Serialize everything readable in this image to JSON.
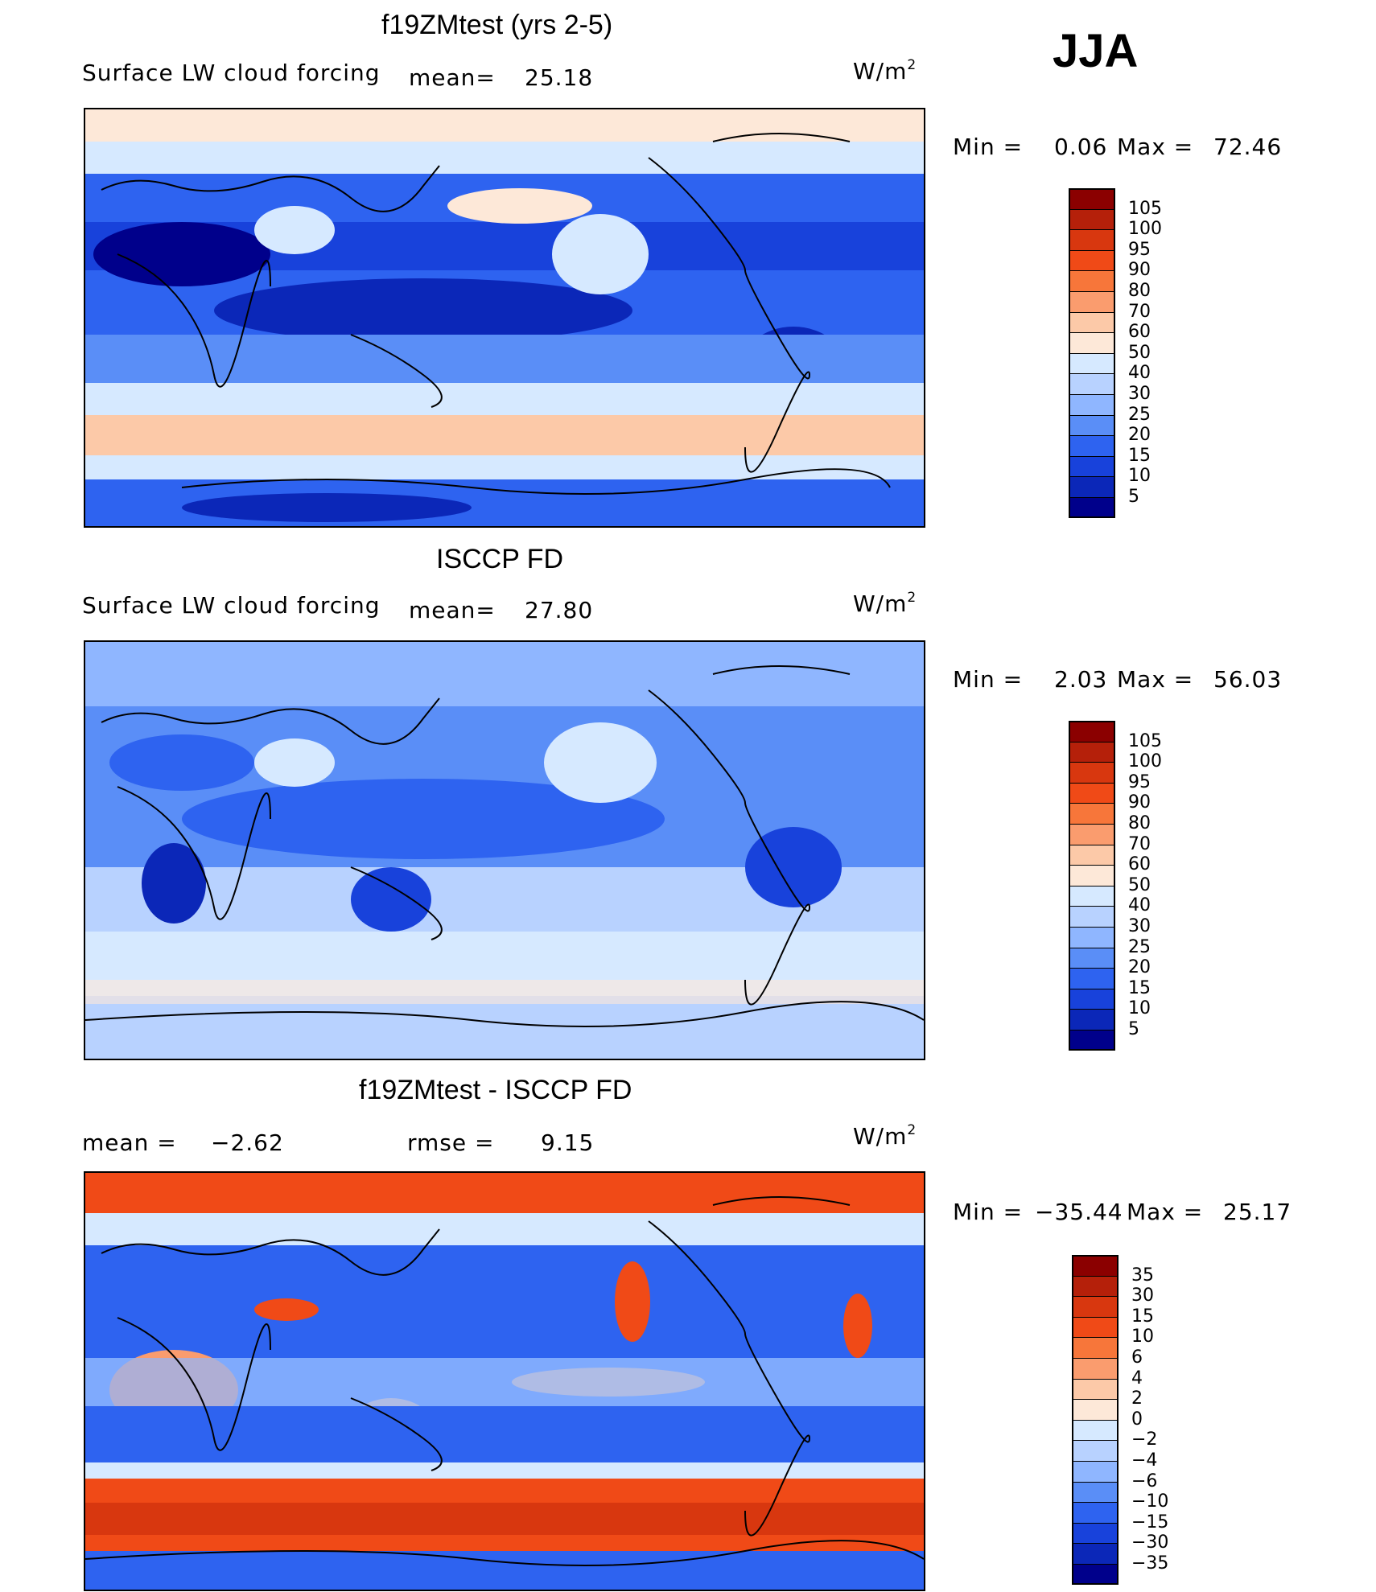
{
  "season": "JJA",
  "units_label": "W/m",
  "units_sup": "2",
  "panels": [
    {
      "title": "f19ZMtest (yrs 2-5)",
      "field": "Surface LW cloud forcing",
      "mean_label": "mean=",
      "mean_value": "25.18",
      "min_label": "Min =",
      "min_value": "0.06",
      "max_label": "Max =",
      "max_value": "72.46",
      "colorbar": {
        "levels": [
          "105",
          "100",
          "95",
          "90",
          "80",
          "70",
          "60",
          "50",
          "40",
          "30",
          "25",
          "20",
          "15",
          "10",
          "5"
        ],
        "colors": [
          "#8b0000",
          "#b5200a",
          "#d8370f",
          "#f04a17",
          "#f7763a",
          "#fa9c6e",
          "#fcc9a8",
          "#fde8d8",
          "#d6e9ff",
          "#b8d2ff",
          "#8fb6ff",
          "#5a8ef7",
          "#2e63f0",
          "#1842db",
          "#0b27b8",
          "#00008b"
        ]
      }
    },
    {
      "title": "ISCCP FD",
      "field": "Surface LW cloud forcing",
      "mean_label": "mean=",
      "mean_value": "27.80",
      "min_label": "Min =",
      "min_value": "2.03",
      "max_label": "Max =",
      "max_value": "56.03",
      "colorbar": {
        "levels": [
          "105",
          "100",
          "95",
          "90",
          "80",
          "70",
          "60",
          "50",
          "40",
          "30",
          "25",
          "20",
          "15",
          "10",
          "5"
        ],
        "colors": [
          "#8b0000",
          "#b5200a",
          "#d8370f",
          "#f04a17",
          "#f7763a",
          "#fa9c6e",
          "#fcc9a8",
          "#fde8d8",
          "#d6e9ff",
          "#b8d2ff",
          "#8fb6ff",
          "#5a8ef7",
          "#2e63f0",
          "#1842db",
          "#0b27b8",
          "#00008b"
        ]
      }
    },
    {
      "title": "f19ZMtest - ISCCP FD",
      "mean_label": "mean =",
      "mean_value": "−2.62",
      "rmse_label": "rmse =",
      "rmse_value": "9.15",
      "min_label": "Min =",
      "min_value": "−35.44",
      "max_label": "Max =",
      "max_value": "25.17",
      "colorbar": {
        "levels": [
          "35",
          "30",
          "15",
          "10",
          "6",
          "4",
          "2",
          "0",
          "−2",
          "−4",
          "−6",
          "−10",
          "−15",
          "−30",
          "−35"
        ],
        "colors": [
          "#8b0000",
          "#b5200a",
          "#d8370f",
          "#f04a17",
          "#f7763a",
          "#fa9c6e",
          "#fcc9a8",
          "#fde8d8",
          "#d6e9ff",
          "#b8d2ff",
          "#8fb6ff",
          "#5a8ef7",
          "#2e63f0",
          "#1842db",
          "#0b27b8",
          "#00008b"
        ]
      }
    }
  ]
}
